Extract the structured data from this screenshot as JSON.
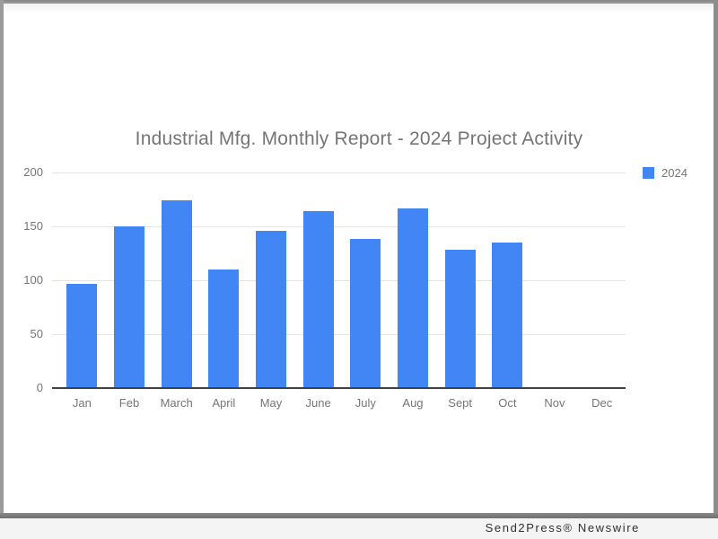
{
  "credit": "Send2Press® Newswire",
  "colors": {
    "bar": "#4285f4",
    "label_gray": "#757575",
    "gridline": "#e3e3e3",
    "axis_line": "#424242",
    "footer_bg": "#f4f4f4",
    "frame_gray": "#8d8d8d"
  },
  "chart_data": {
    "type": "bar",
    "title": "Industrial Mfg. Monthly Report - 2024 Project Activity",
    "categories": [
      "Jan",
      "Feb",
      "March",
      "April",
      "May",
      "June",
      "July",
      "Aug",
      "Sept",
      "Oct",
      "Nov",
      "Dec"
    ],
    "series": [
      {
        "name": "2024",
        "values": [
          97,
          150,
          174,
          110,
          146,
          164,
          138,
          167,
          128,
          135,
          0,
          0
        ]
      }
    ],
    "xlabel": "",
    "ylabel": "",
    "ylim": [
      0,
      200
    ],
    "yticks": [
      0,
      50,
      100,
      150,
      200
    ],
    "grid": true,
    "legend_position": "top-right",
    "bar_color": "#4285f4"
  }
}
